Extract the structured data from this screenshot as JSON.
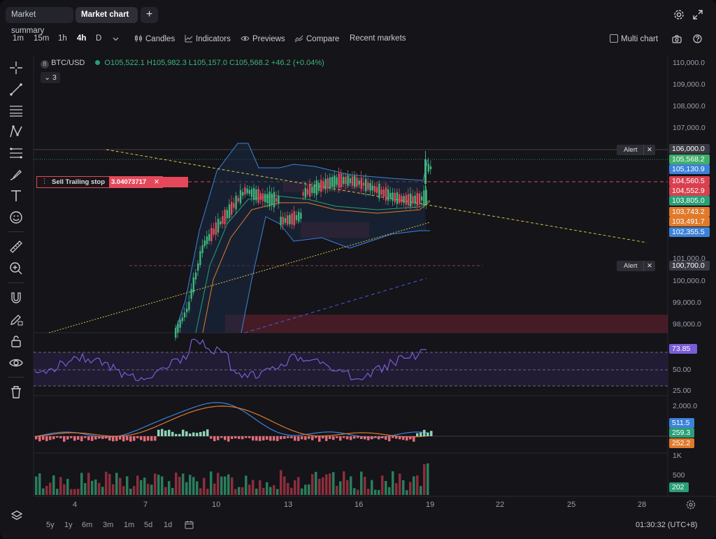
{
  "tabs": [
    {
      "label": "Market summary",
      "active": false
    },
    {
      "label": "Market chart",
      "active": true
    }
  ],
  "toolbar": {
    "intervals": [
      "1m",
      "15m",
      "1h",
      "4h",
      "D"
    ],
    "active_interval": "4h",
    "candles": "Candles",
    "indicators": "Indicators",
    "previews": "Previews",
    "compare": "Compare",
    "recent_markets": "Recent markets",
    "multi_chart": "Multi chart"
  },
  "legend": {
    "symbol": "BTC/USD",
    "ohlc": "O105,522.1  H105,982.3  L105,157.0  C105,568.2  +46.2 (+0.04%)",
    "collapse_count": "3"
  },
  "price_axis": [
    "110,000.0",
    "109,000.0",
    "108,000.0",
    "107,000.0",
    "101,000.0",
    "100,000.0",
    "99,000.0",
    "98,000.0"
  ],
  "price_tags": [
    {
      "label": "106,000.0",
      "color": "#3a3a44"
    },
    {
      "label": "105,568.2",
      "color": "#3fae6b"
    },
    {
      "label": "105,130.9",
      "color": "#3d82d9"
    },
    {
      "label": "104,560.5",
      "color": "#d9404f"
    },
    {
      "label": "104,552.9",
      "color": "#d9404f"
    },
    {
      "label": "103,805.0",
      "color": "#2a9e76"
    },
    {
      "label": "103,743.2",
      "color": "#e07a2a"
    },
    {
      "label": "103,491.7",
      "color": "#e07a2a"
    },
    {
      "label": "102,355.5",
      "color": "#3d82d9"
    },
    {
      "label": "100,700.0",
      "color": "#3a3a44"
    }
  ],
  "alerts": [
    {
      "label": "Alert",
      "price": "106,000.0"
    },
    {
      "label": "Alert",
      "price": "100,700.0"
    }
  ],
  "trailing_stop": {
    "label": "Sell Trailing stop",
    "value": "3.04073717"
  },
  "rsi": {
    "value": "73.85",
    "levels": [
      "50.00",
      "25.00"
    ]
  },
  "macd": {
    "values": [
      "511.5",
      "259.3",
      "252.2"
    ],
    "axis": [
      "2,000.0"
    ]
  },
  "volume": {
    "value": "202",
    "axis": [
      "1K",
      "500"
    ]
  },
  "time_axis": [
    "4",
    "7",
    "10",
    "13",
    "16",
    "19",
    "22",
    "25",
    "28"
  ],
  "ranges": [
    "5y",
    "1y",
    "6m",
    "3m",
    "1m",
    "5d",
    "1d"
  ],
  "clock": "01:30:32 (UTC+8)",
  "colors": {
    "up": "#3fb57a",
    "down": "#e04a5a",
    "background": "#141419"
  },
  "icons": [
    "settings-icon",
    "fullscreen-icon",
    "camera-icon",
    "help-icon",
    "layers-icon",
    "calendar-icon",
    "chart-settings-icon"
  ]
}
